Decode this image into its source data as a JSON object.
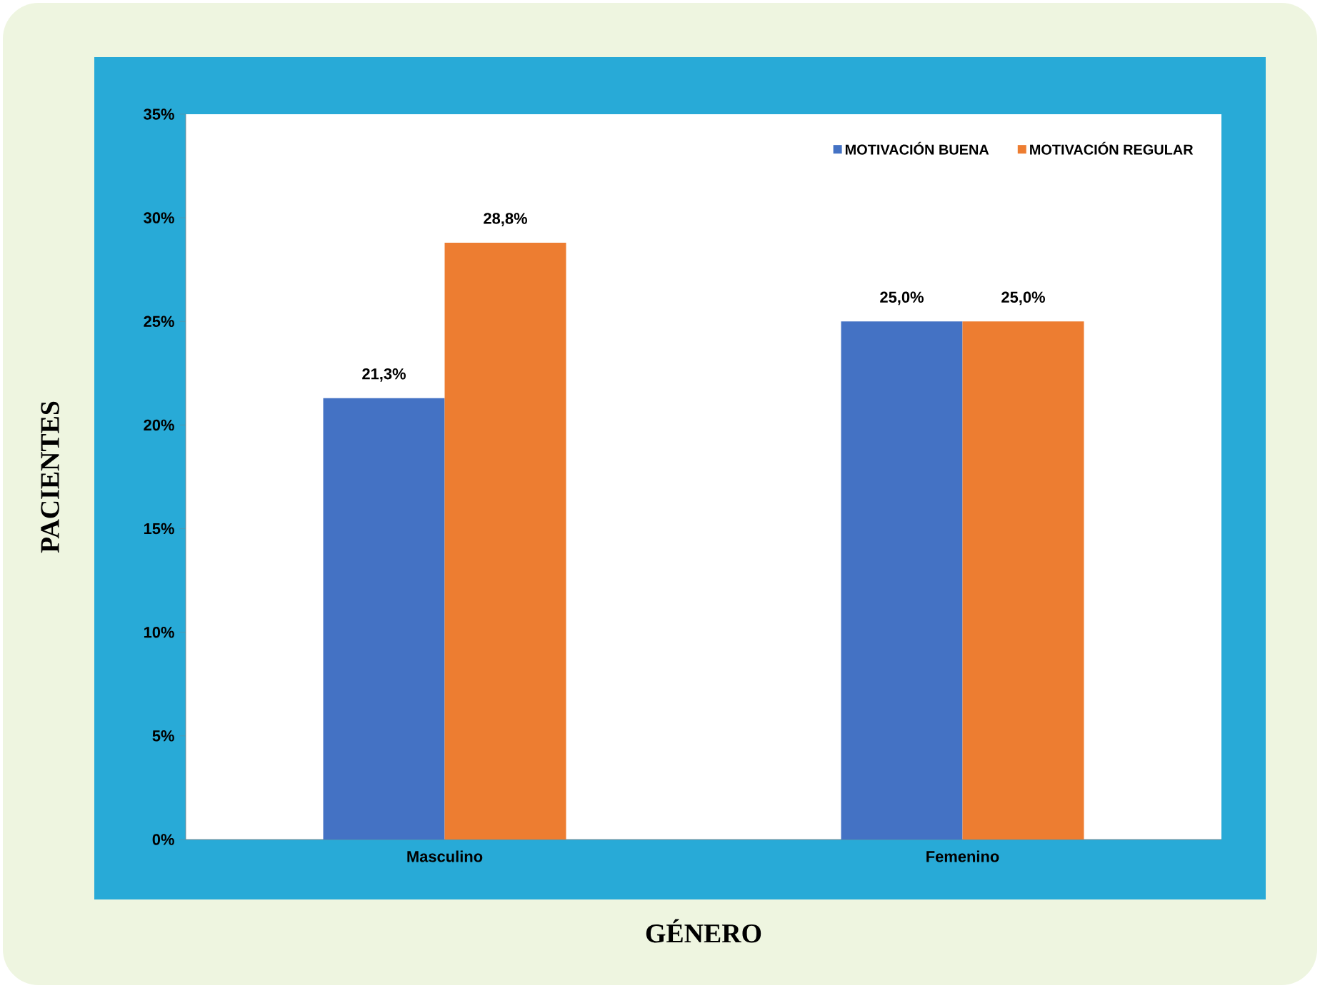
{
  "chart_data": {
    "type": "bar",
    "xlabel": "GÉNERO",
    "ylabel": "PACIENTES",
    "categories": [
      "Masculino",
      "Femenino"
    ],
    "series": [
      {
        "name": "MOTIVACIÓN BUENA",
        "color": "#4472c4",
        "values": [
          21.3,
          25.0
        ],
        "value_labels": [
          "21,3%",
          "25,0%"
        ]
      },
      {
        "name": "MOTIVACIÓN REGULAR",
        "color": "#ed7d31",
        "values": [
          28.8,
          25.0
        ],
        "value_labels": [
          "28,8%",
          "25,0%"
        ]
      }
    ],
    "ylim": [
      0,
      35
    ],
    "yticks": [
      {
        "value": 0,
        "label": "0%"
      },
      {
        "value": 5,
        "label": "5%"
      },
      {
        "value": 10,
        "label": "10%"
      },
      {
        "value": 15,
        "label": "15%"
      },
      {
        "value": 20,
        "label": "20%"
      },
      {
        "value": 25,
        "label": "25%"
      },
      {
        "value": 30,
        "label": "30%"
      },
      {
        "value": 35,
        "label": "35%"
      }
    ],
    "grid": false,
    "legend": "top right"
  }
}
